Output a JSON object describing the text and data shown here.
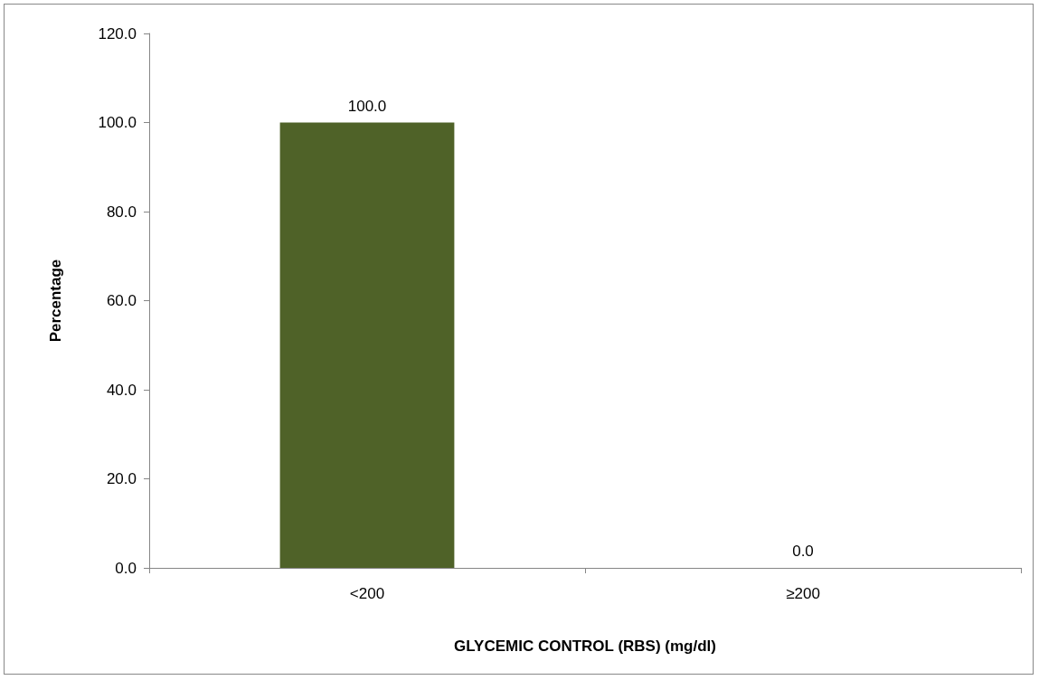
{
  "chart_data": {
    "type": "bar",
    "xlabel": "GLYCEMIC CONTROL (RBS) (mg/dl)",
    "ylabel": "Percentage",
    "categories": [
      "<200",
      "≥200"
    ],
    "values": [
      100,
      0
    ],
    "color": "#4f6228",
    "value_labels": [
      "100.0",
      "0.0"
    ],
    "ylim": [
      0,
      120
    ],
    "yticks": [
      {
        "value": 0,
        "label": "0.0"
      },
      {
        "value": 20,
        "label": "20.0"
      },
      {
        "value": 40,
        "label": "40.0"
      },
      {
        "value": 60,
        "label": "60.0"
      },
      {
        "value": 80,
        "label": "80.0"
      },
      {
        "value": 100,
        "label": "100.0"
      },
      {
        "value": 120,
        "label": "120.0"
      }
    ],
    "grid": false
  }
}
